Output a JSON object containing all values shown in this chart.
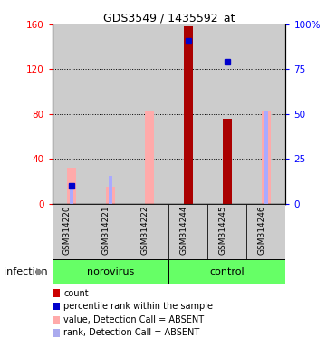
{
  "title": "GDS3549 / 1435592_at",
  "samples": [
    "GSM314220",
    "GSM314221",
    "GSM314222",
    "GSM314244",
    "GSM314245",
    "GSM314246"
  ],
  "group_labels": [
    "norovirus",
    "control"
  ],
  "group_color": "#66ff66",
  "factor_label": "infection",
  "ylim_left": [
    0,
    160
  ],
  "ylim_right": [
    0,
    100
  ],
  "yticks_left": [
    0,
    40,
    80,
    120,
    160
  ],
  "yticks_right": [
    0,
    25,
    50,
    75,
    100
  ],
  "ytick_labels_right": [
    "0",
    "25",
    "50",
    "75",
    "100%"
  ],
  "count_color": "#aa0000",
  "percentile_color": "#0000cc",
  "value_absent_color": "#ffaaaa",
  "rank_absent_color": "#aaaaff",
  "counts": [
    0,
    0,
    0,
    158,
    76,
    0
  ],
  "percentile_ranks": [
    10,
    0,
    0,
    91,
    79,
    0
  ],
  "values_absent": [
    32,
    15,
    83,
    0,
    0,
    83
  ],
  "ranks_absent": [
    13,
    25,
    0,
    0,
    0,
    83
  ],
  "has_count": [
    false,
    false,
    false,
    true,
    true,
    false
  ],
  "has_percentile": [
    true,
    false,
    false,
    true,
    true,
    false
  ],
  "has_value_absent": [
    true,
    true,
    true,
    false,
    false,
    true
  ],
  "has_rank_absent": [
    true,
    true,
    false,
    false,
    false,
    true
  ],
  "bg_color": "#cccccc",
  "legend_items": [
    {
      "label": "count",
      "color": "#cc0000"
    },
    {
      "label": "percentile rank within the sample",
      "color": "#0000cc"
    },
    {
      "label": "value, Detection Call = ABSENT",
      "color": "#ffaaaa"
    },
    {
      "label": "rank, Detection Call = ABSENT",
      "color": "#aaaaee"
    }
  ]
}
